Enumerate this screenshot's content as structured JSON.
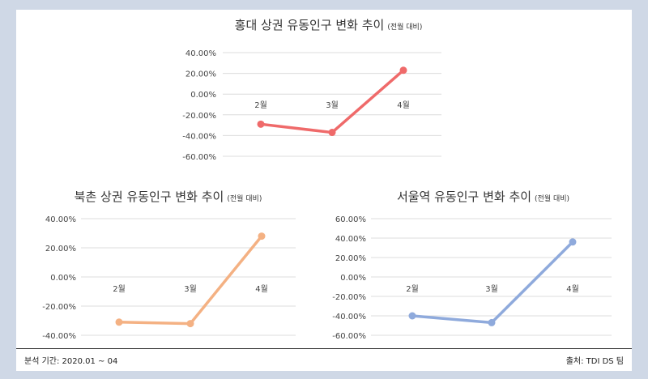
{
  "chart_data": [
    {
      "type": "line",
      "title": "홍대 상권 유동인구 변화 추이",
      "subtitle": "(전월 대비)",
      "categories": [
        "2월",
        "3월",
        "4월"
      ],
      "series": [
        {
          "values": [
            -29,
            -37,
            23
          ],
          "color": "#ef6a6a"
        }
      ],
      "yticks": [
        "40.00%",
        "20.00%",
        "0.00%",
        "-20.00%",
        "-40.00%",
        "-60.00%"
      ],
      "ylim": [
        -60,
        40
      ],
      "grid": true
    },
    {
      "type": "line",
      "title": "북촌 상권 유동인구 변화 추이",
      "subtitle": "(전월 대비)",
      "categories": [
        "2월",
        "3월",
        "4월"
      ],
      "series": [
        {
          "values": [
            -31,
            -32,
            28
          ],
          "color": "#f4b183"
        }
      ],
      "yticks": [
        "40.00%",
        "20.00%",
        "0.00%",
        "-20.00%",
        "-40.00%"
      ],
      "ylim": [
        -40,
        40
      ],
      "grid": true
    },
    {
      "type": "line",
      "title": "서울역 유동인구 변화 추이",
      "subtitle": "(전월 대비)",
      "categories": [
        "2월",
        "3월",
        "4월"
      ],
      "series": [
        {
          "values": [
            -40,
            -47,
            36
          ],
          "color": "#8faadc"
        }
      ],
      "yticks": [
        "60.00%",
        "40.00%",
        "20.00%",
        "0.00%",
        "-20.00%",
        "-40.00%",
        "-60.00%"
      ],
      "ylim": [
        -60,
        60
      ],
      "grid": true
    }
  ],
  "footer": {
    "left": "분석 기간: 2020.01 ~ 04",
    "right": "출처: TDI DS 팀"
  }
}
